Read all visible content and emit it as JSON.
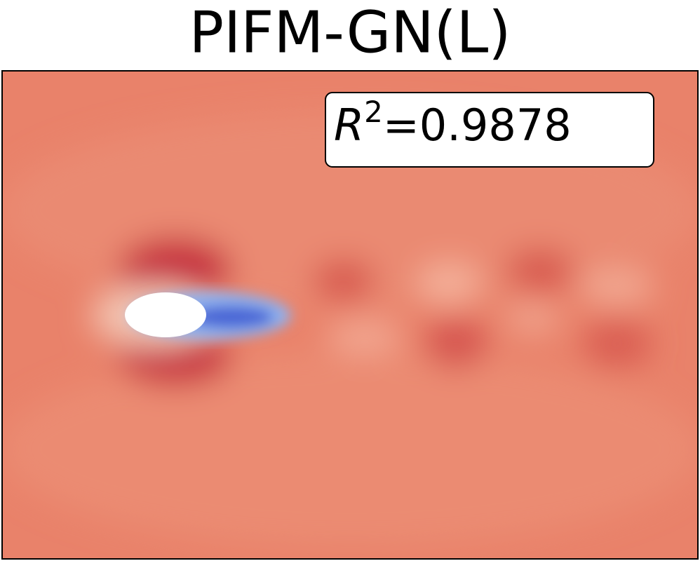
{
  "title": "PIFM-GN(L)",
  "annotation": {
    "symbol": "R",
    "exponent": "2",
    "text": "=0.9878"
  }
}
